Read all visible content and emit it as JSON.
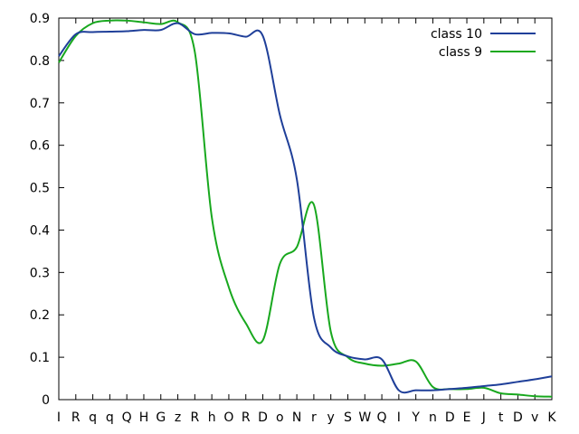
{
  "chart_data": {
    "type": "line",
    "title": "",
    "xlabel": "",
    "ylabel": "",
    "categories": [
      "I",
      "R",
      "q",
      "q",
      "Q",
      "H",
      "G",
      "z",
      "R",
      "h",
      "O",
      "R",
      "D",
      "o",
      "N",
      "r",
      "y",
      "S",
      "W",
      "Q",
      "I",
      "Y",
      "n",
      "D",
      "E",
      "J",
      "t",
      "D",
      "v",
      "K"
    ],
    "ylim": [
      0,
      0.9
    ],
    "yticks": [
      "0",
      "0.1",
      "0.2",
      "0.3",
      "0.4",
      "0.5",
      "0.6",
      "0.7",
      "0.8",
      "0.9"
    ],
    "grid": false,
    "legend_position": "top-right",
    "series": [
      {
        "name": "class 10",
        "color": "#1f3f99",
        "values": [
          0.81,
          0.862,
          0.867,
          0.868,
          0.869,
          0.872,
          0.872,
          0.888,
          0.862,
          0.865,
          0.864,
          0.856,
          0.858,
          0.672,
          0.52,
          0.195,
          0.123,
          0.102,
          0.095,
          0.095,
          0.022,
          0.022,
          0.022,
          0.025,
          0.028,
          0.032,
          0.036,
          0.042,
          0.048,
          0.055
        ]
      },
      {
        "name": "class 9",
        "color": "#18a81e",
        "values": [
          0.795,
          0.858,
          0.888,
          0.894,
          0.894,
          0.89,
          0.886,
          0.89,
          0.82,
          0.43,
          0.265,
          0.18,
          0.14,
          0.32,
          0.36,
          0.46,
          0.16,
          0.1,
          0.085,
          0.08,
          0.085,
          0.09,
          0.03,
          0.025,
          0.025,
          0.028,
          0.015,
          0.012,
          0.008,
          0.007
        ]
      }
    ]
  }
}
